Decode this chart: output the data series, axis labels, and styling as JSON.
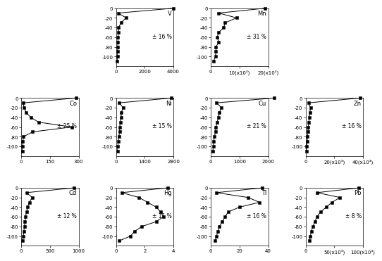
{
  "subplots": [
    {
      "element": "V",
      "error": "± 16 %",
      "depths": [
        0,
        -10,
        -20,
        -30,
        -40,
        -50,
        -60,
        -70,
        -80,
        -90,
        -100,
        -110
      ],
      "values": [
        4000,
        150,
        700,
        350,
        180,
        160,
        140,
        130,
        120,
        110,
        100,
        75
      ],
      "xlim": [
        0,
        4000
      ],
      "xticks": [
        0,
        2000,
        4000
      ],
      "xticklabels": [
        "0",
        "2000",
        "4000"
      ],
      "ylim": [
        -120,
        0
      ],
      "yticks": [
        0,
        -20,
        -40,
        -60,
        -80,
        -100
      ],
      "row": 0,
      "col": 1
    },
    {
      "element": "Mn",
      "error": "± 31 %",
      "depths": [
        0,
        -10,
        -20,
        -30,
        -40,
        -50,
        -60,
        -70,
        -80,
        -90,
        -100,
        -110
      ],
      "values": [
        19000,
        2800,
        9000,
        5000,
        4500,
        2800,
        2200,
        2800,
        1800,
        1800,
        1600,
        1000
      ],
      "xlim": [
        0,
        20000
      ],
      "xticks": [
        0,
        10000,
        20000
      ],
      "xticklabels": [
        "0",
        "10(x10³)",
        "20(x10³)"
      ],
      "ylim": [
        -120,
        0
      ],
      "yticks": [
        0,
        -20,
        -40,
        -60,
        -80,
        -100
      ],
      "row": 0,
      "col": 2
    },
    {
      "element": "Co",
      "error": "± 25 %",
      "depths": [
        0,
        -10,
        -20,
        -30,
        -40,
        -50,
        -60,
        -70,
        -80,
        -90,
        -100,
        -110
      ],
      "values": [
        285,
        10,
        15,
        25,
        50,
        90,
        265,
        60,
        12,
        8,
        7,
        5
      ],
      "xlim": [
        0,
        300
      ],
      "xticks": [
        0,
        150,
        300
      ],
      "xticklabels": [
        "0",
        "150",
        "300"
      ],
      "ylim": [
        -120,
        0
      ],
      "yticks": [
        0,
        -20,
        -40,
        -60,
        -80,
        -100
      ],
      "row": 1,
      "col": 0
    },
    {
      "element": "Ni",
      "error": "± 15 %",
      "depths": [
        0,
        -10,
        -20,
        -30,
        -40,
        -50,
        -60,
        -70,
        -80,
        -90,
        -100,
        -110
      ],
      "values": [
        2700,
        150,
        350,
        250,
        250,
        210,
        180,
        170,
        140,
        110,
        90,
        70
      ],
      "xlim": [
        0,
        2800
      ],
      "xticks": [
        0,
        1400,
        2800
      ],
      "xticklabels": [
        "0",
        "1400",
        "2800"
      ],
      "ylim": [
        -120,
        0
      ],
      "yticks": [
        0,
        -20,
        -40,
        -60,
        -80,
        -100
      ],
      "row": 1,
      "col": 1
    },
    {
      "element": "Cu",
      "error": "± 21 %",
      "depths": [
        0,
        -10,
        -20,
        -30,
        -40,
        -50,
        -60,
        -70,
        -80,
        -90,
        -100,
        -110
      ],
      "values": [
        2200,
        200,
        370,
        300,
        270,
        220,
        180,
        160,
        130,
        100,
        90,
        70
      ],
      "xlim": [
        0,
        2000
      ],
      "xticks": [
        0,
        1000,
        2000
      ],
      "xticklabels": [
        "0",
        "1000",
        "2000"
      ],
      "ylim": [
        -120,
        0
      ],
      "yticks": [
        0,
        -20,
        -40,
        -60,
        -80,
        -100
      ],
      "row": 1,
      "col": 2
    },
    {
      "element": "Zn",
      "error": "± 16 %",
      "depths": [
        0,
        -10,
        -20,
        -30,
        -40,
        -50,
        -60,
        -70,
        -80,
        -90,
        -100,
        -110
      ],
      "values": [
        38000,
        2000,
        3500,
        3000,
        2600,
        2200,
        1900,
        1700,
        1400,
        1100,
        900,
        700
      ],
      "xlim": [
        0,
        40000
      ],
      "xticks": [
        0,
        20000,
        40000
      ],
      "xticklabels": [
        "0",
        "20(x10³)",
        "40(x10³)"
      ],
      "ylim": [
        -120,
        0
      ],
      "yticks": [
        0,
        -20,
        -40,
        -60,
        -80,
        -100
      ],
      "row": 1,
      "col": 3
    },
    {
      "element": "Cd",
      "error": "± 12 %",
      "depths": [
        0,
        -10,
        -20,
        -30,
        -40,
        -50,
        -60,
        -70,
        -80,
        -90,
        -100,
        -110
      ],
      "values": [
        920,
        90,
        190,
        140,
        110,
        90,
        75,
        65,
        55,
        45,
        35,
        25
      ],
      "xlim": [
        0,
        1000
      ],
      "xticks": [
        0,
        500,
        1000
      ],
      "xticklabels": [
        "0",
        "500",
        "1000"
      ],
      "ylim": [
        -120,
        0
      ],
      "yticks": [
        0,
        -20,
        -40,
        -60,
        -80,
        -100
      ],
      "row": 2,
      "col": 0
    },
    {
      "element": "Hg",
      "error": "± 11 %",
      "depths": [
        0,
        -10,
        -20,
        -30,
        -40,
        -50,
        -60,
        -70,
        -80,
        -90,
        -100,
        -110
      ],
      "values": [
        3.6,
        0.4,
        1.6,
        2.2,
        2.8,
        3.1,
        3.3,
        2.8,
        1.8,
        1.3,
        1.0,
        0.2
      ],
      "xlim": [
        0,
        4
      ],
      "xticks": [
        0,
        2,
        4
      ],
      "xticklabels": [
        "0",
        "2",
        "4"
      ],
      "ylim": [
        -120,
        0
      ],
      "yticks": [
        0,
        -20,
        -40,
        -60,
        -80,
        -100
      ],
      "row": 2,
      "col": 1
    },
    {
      "element": "Tl",
      "error": "± 16 %",
      "depths": [
        0,
        -10,
        -20,
        -30,
        -40,
        -50,
        -60,
        -70,
        -80,
        -90,
        -100,
        -110
      ],
      "values": [
        36,
        4,
        26,
        34,
        20,
        12,
        10,
        8,
        6,
        5,
        4,
        3
      ],
      "xlim": [
        0,
        40
      ],
      "xticks": [
        0,
        20,
        40
      ],
      "xticklabels": [
        "0",
        "20",
        "40"
      ],
      "ylim": [
        -120,
        0
      ],
      "yticks": [
        0,
        -20,
        -40,
        -60,
        -80,
        -100
      ],
      "row": 2,
      "col": 2
    },
    {
      "element": "Pb",
      "error": "± 8 %",
      "depths": [
        0,
        -10,
        -20,
        -30,
        -40,
        -50,
        -60,
        -70,
        -80,
        -90,
        -100,
        -110
      ],
      "values": [
        93000,
        20000,
        60000,
        46000,
        36000,
        26000,
        20000,
        16000,
        13000,
        10000,
        8500,
        7000
      ],
      "xlim": [
        0,
        100000
      ],
      "xticks": [
        0,
        50000,
        100000
      ],
      "xticklabels": [
        "0",
        "50(x10³)",
        "100(x10³)"
      ],
      "ylim": [
        -120,
        0
      ],
      "yticks": [
        0,
        -20,
        -40,
        -60,
        -80,
        -100
      ],
      "row": 2,
      "col": 3
    }
  ],
  "marker": "s",
  "markersize": 3.0,
  "linecolor": "black",
  "linewidth": 0.7,
  "fontsize_element": 6.0,
  "fontsize_error": 5.5,
  "tick_fontsize": 5.0
}
